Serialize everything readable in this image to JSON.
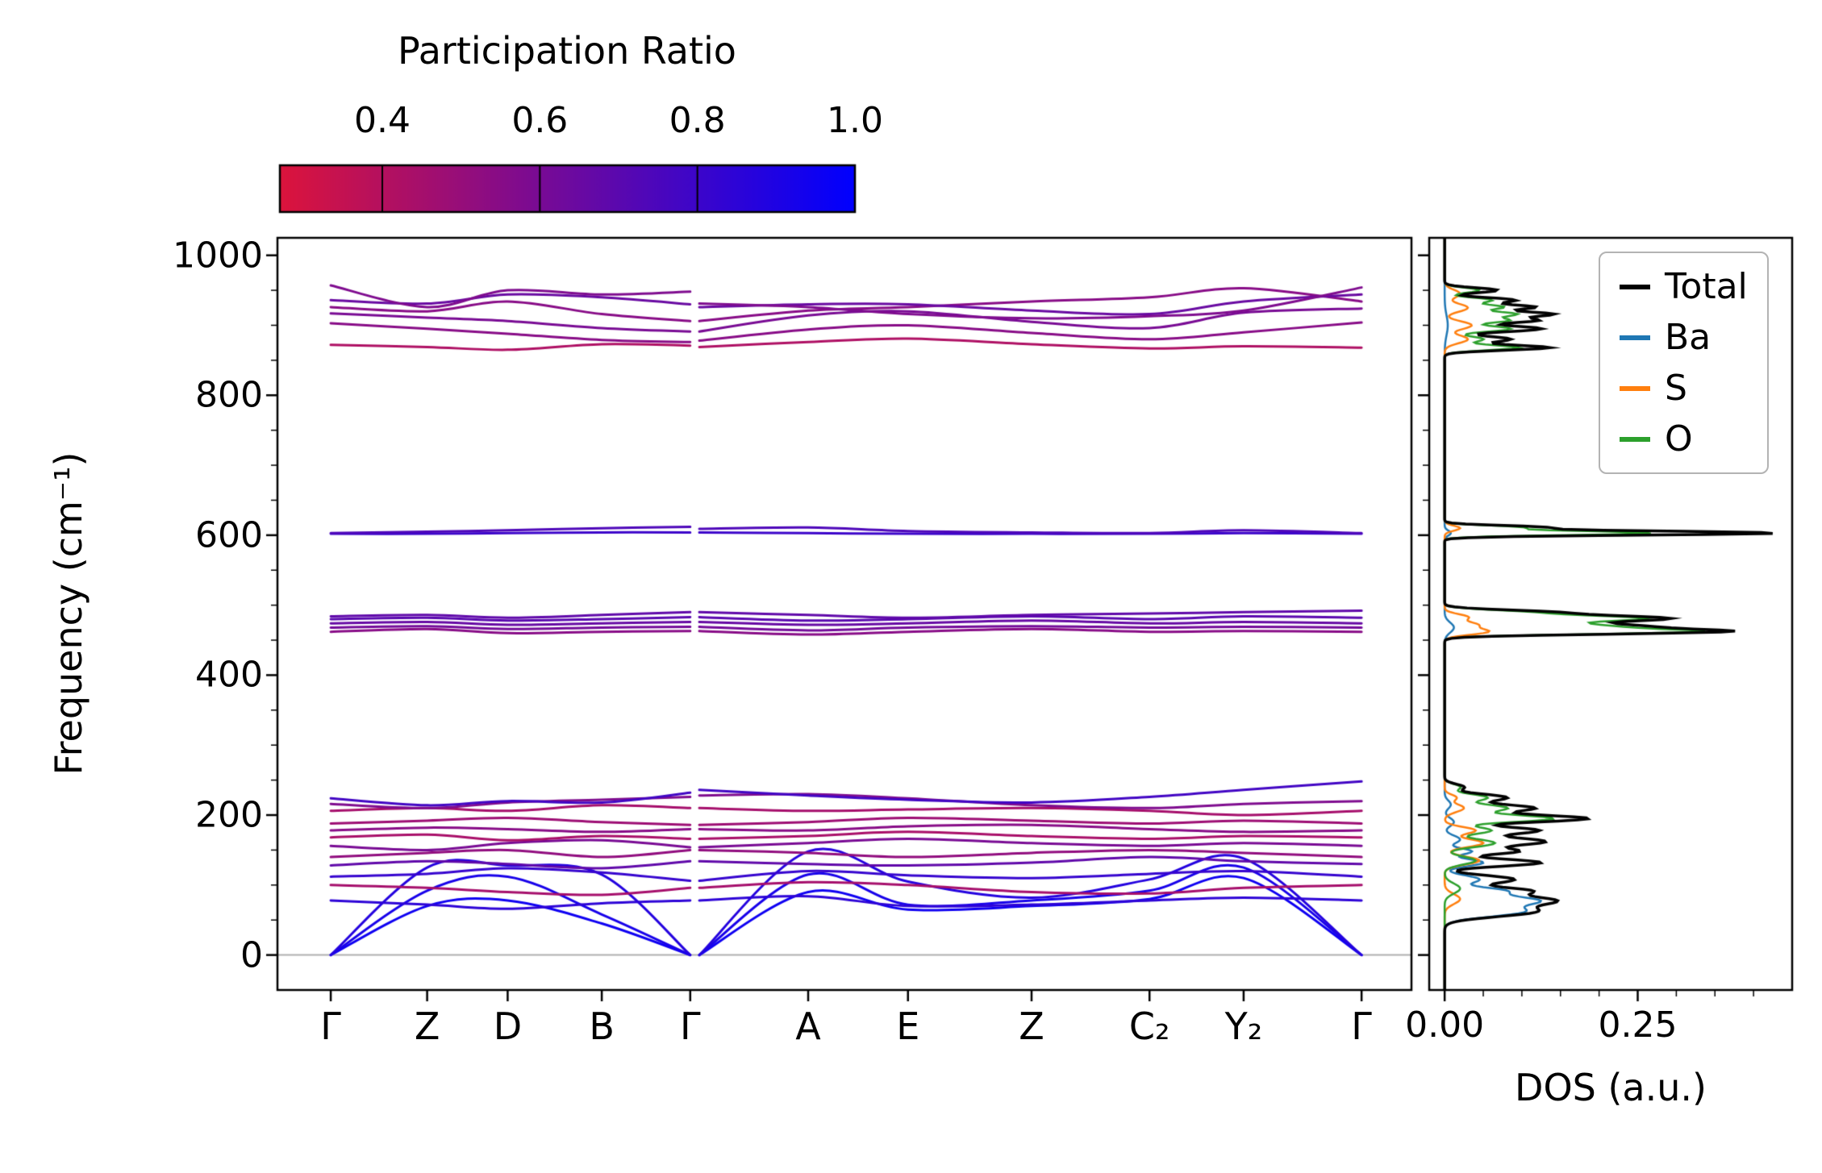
{
  "figure": {
    "colorbar": {
      "title": "Participation Ratio",
      "tick_labels": [
        "0.4",
        "0.6",
        "0.8",
        "1.0"
      ],
      "tick_values": [
        0.4,
        0.6,
        0.8,
        1.0
      ],
      "vmin": 0.27,
      "vmax": 1.0,
      "color_start": "#dc143c",
      "color_end": "#0000ff"
    },
    "band_panel": {
      "ylabel": "Frequency (cm⁻¹)",
      "ytick_labels": [
        "1000",
        "800",
        "600",
        "400",
        "200",
        "0"
      ],
      "ytick_values": [
        1000,
        800,
        600,
        400,
        200,
        0
      ],
      "xtick_labels": [
        "Γ",
        "Z",
        "D",
        "B",
        "Γ",
        "A",
        "E",
        "Z",
        "C₂",
        "Y₂",
        "Γ"
      ]
    },
    "dos_panel": {
      "xlabel": "DOS (a.u.)",
      "xtick_labels": [
        "0.00",
        "0.25"
      ],
      "xtick_values": [
        0.0,
        0.25
      ],
      "legend": [
        {
          "label": "Total",
          "color": "#000000"
        },
        {
          "label": "Ba",
          "color": "#1f77b4"
        },
        {
          "label": "S",
          "color": "#ff7f0e"
        },
        {
          "label": "O",
          "color": "#2ca02c"
        }
      ]
    }
  },
  "chart_data": [
    {
      "type": "line",
      "title": "Phonon band structure colored by participation ratio",
      "xlabel": "",
      "ylabel": "Frequency (cm⁻¹)",
      "ylim": [
        -50,
        1025
      ],
      "yticks": [
        0,
        200,
        400,
        600,
        800,
        1000
      ],
      "x_tick_labels": [
        "Γ",
        "Z",
        "D",
        "B",
        "Γ",
        "A",
        "E",
        "Z",
        "C₂",
        "Y₂",
        "Γ"
      ],
      "x_tick_positions": [
        0.047,
        0.132,
        0.203,
        0.286,
        0.364,
        0.468,
        0.556,
        0.665,
        0.769,
        0.852,
        0.956
      ],
      "colormap": {
        "vmin": 0.27,
        "vmax": 1.0,
        "from": "#dc143c",
        "to": "#0000ff"
      },
      "segment_break_offset": 0.008,
      "zero_line": 0,
      "bands": [
        {
          "pr": 0.95,
          "f1": [
            0,
            70,
            78,
            45,
            0
          ],
          "f2": [
            0,
            90,
            65,
            70,
            80,
            110,
            0
          ]
        },
        {
          "pr": 0.92,
          "f1": [
            0,
            92,
            112,
            58,
            0
          ],
          "f2": [
            0,
            115,
            72,
            78,
            92,
            125,
            0
          ]
        },
        {
          "pr": 0.88,
          "f1": [
            0,
            125,
            128,
            115,
            0
          ],
          "f2": [
            0,
            148,
            105,
            82,
            108,
            138,
            0
          ]
        },
        {
          "pr": 0.85,
          "f1": [
            78,
            72,
            66,
            74,
            78
          ],
          "f2": [
            78,
            84,
            70,
            72,
            78,
            82,
            78
          ]
        },
        {
          "pr": 0.45,
          "f1": [
            100,
            96,
            90,
            86,
            96
          ],
          "f2": [
            96,
            104,
            100,
            90,
            88,
            96,
            100
          ]
        },
        {
          "pr": 0.82,
          "f1": [
            112,
            116,
            124,
            118,
            106
          ],
          "f2": [
            106,
            120,
            114,
            110,
            116,
            120,
            112
          ]
        },
        {
          "pr": 0.68,
          "f1": [
            128,
            134,
            130,
            124,
            134
          ],
          "f2": [
            134,
            130,
            128,
            132,
            140,
            134,
            130
          ]
        },
        {
          "pr": 0.52,
          "f1": [
            140,
            146,
            150,
            140,
            150
          ],
          "f2": [
            150,
            146,
            140,
            146,
            150,
            146,
            140
          ]
        },
        {
          "pr": 0.6,
          "f1": [
            156,
            150,
            160,
            164,
            154
          ],
          "f2": [
            154,
            160,
            166,
            160,
            156,
            160,
            156
          ]
        },
        {
          "pr": 0.44,
          "f1": [
            168,
            172,
            164,
            170,
            166
          ],
          "f2": [
            166,
            170,
            176,
            170,
            166,
            170,
            168
          ]
        },
        {
          "pr": 0.55,
          "f1": [
            178,
            182,
            180,
            176,
            180
          ],
          "f2": [
            180,
            178,
            184,
            186,
            180,
            176,
            178
          ]
        },
        {
          "pr": 0.48,
          "f1": [
            188,
            192,
            196,
            190,
            186
          ],
          "f2": [
            186,
            190,
            196,
            192,
            188,
            192,
            188
          ]
        },
        {
          "pr": 0.45,
          "f1": [
            206,
            210,
            206,
            214,
            210
          ],
          "f2": [
            210,
            206,
            208,
            210,
            206,
            200,
            206
          ]
        },
        {
          "pr": 0.58,
          "f1": [
            216,
            210,
            218,
            222,
            226
          ],
          "f2": [
            228,
            230,
            224,
            214,
            210,
            216,
            220
          ]
        },
        {
          "pr": 0.78,
          "f1": [
            224,
            214,
            220,
            218,
            232
          ],
          "f2": [
            236,
            228,
            222,
            218,
            226,
            236,
            248
          ]
        },
        {
          "pr": 0.55,
          "f1": [
            462,
            466,
            460,
            462,
            463
          ],
          "f2": [
            463,
            458,
            462,
            466,
            462,
            463,
            462
          ]
        },
        {
          "pr": 0.62,
          "f1": [
            468,
            470,
            466,
            468,
            469
          ],
          "f2": [
            469,
            464,
            468,
            470,
            468,
            469,
            468
          ]
        },
        {
          "pr": 0.66,
          "f1": [
            474,
            476,
            472,
            474,
            476
          ],
          "f2": [
            476,
            472,
            474,
            478,
            474,
            476,
            474
          ]
        },
        {
          "pr": 0.7,
          "f1": [
            480,
            482,
            478,
            480,
            483
          ],
          "f2": [
            483,
            478,
            480,
            484,
            480,
            484,
            482
          ]
        },
        {
          "pr": 0.68,
          "f1": [
            484,
            486,
            482,
            486,
            490
          ],
          "f2": [
            490,
            486,
            482,
            486,
            488,
            490,
            492
          ]
        },
        {
          "pr": 0.8,
          "f1": [
            602,
            602,
            603,
            604,
            604
          ],
          "f2": [
            604,
            603,
            602,
            602,
            602,
            603,
            602
          ]
        },
        {
          "pr": 0.74,
          "f1": [
            603,
            605,
            607,
            610,
            612
          ],
          "f2": [
            609,
            611,
            606,
            604,
            603,
            607,
            603
          ]
        },
        {
          "pr": 0.42,
          "f1": [
            872,
            869,
            865,
            873,
            871
          ],
          "f2": [
            869,
            876,
            881,
            873,
            867,
            870,
            868
          ]
        },
        {
          "pr": 0.55,
          "f1": [
            903,
            895,
            888,
            879,
            876
          ],
          "f2": [
            878,
            894,
            900,
            889,
            880,
            890,
            904
          ]
        },
        {
          "pr": 0.6,
          "f1": [
            917,
            911,
            906,
            896,
            891
          ],
          "f2": [
            891,
            914,
            920,
            905,
            896,
            918,
            924
          ]
        },
        {
          "pr": 0.55,
          "f1": [
            926,
            920,
            934,
            916,
            906
          ],
          "f2": [
            906,
            921,
            926,
            934,
            940,
            953,
            934
          ]
        },
        {
          "pr": 0.65,
          "f1": [
            936,
            931,
            944,
            940,
            930
          ],
          "f2": [
            926,
            930,
            930,
            921,
            916,
            934,
            944
          ]
        },
        {
          "pr": 0.58,
          "f1": [
            957,
            926,
            950,
            944,
            948
          ],
          "f2": [
            931,
            926,
            916,
            910,
            913,
            921,
            954
          ]
        }
      ]
    },
    {
      "type": "line",
      "title": "Phonon density of states",
      "xlabel": "DOS (a.u.)",
      "ylabel": "Frequency (cm⁻¹)",
      "orientation": "horizontal",
      "xlim": [
        -0.02,
        0.45
      ],
      "xticks": [
        0.0,
        0.25
      ],
      "ylim": [
        -50,
        1025
      ],
      "legend_position": "upper right",
      "series": [
        {
          "name": "Total",
          "color": "#000000",
          "peaks": [
            [
              62,
              0.115,
              10
            ],
            [
              78,
              0.135,
              9
            ],
            [
              92,
              0.1,
              7
            ],
            [
              108,
              0.09,
              8
            ],
            [
              132,
              0.125,
              7
            ],
            [
              148,
              0.09,
              6
            ],
            [
              162,
              0.13,
              8
            ],
            [
              178,
              0.12,
              7
            ],
            [
              195,
              0.185,
              7
            ],
            [
              210,
              0.115,
              7
            ],
            [
              225,
              0.08,
              7
            ],
            [
              240,
              0.025,
              6
            ],
            [
              462,
              0.33,
              5
            ],
            [
              470,
              0.23,
              6
            ],
            [
              481,
              0.28,
              6
            ],
            [
              490,
              0.12,
              5
            ],
            [
              603,
              0.43,
              4
            ],
            [
              611,
              0.13,
              4
            ],
            [
              868,
              0.135,
              5
            ],
            [
              880,
              0.085,
              6
            ],
            [
              895,
              0.125,
              6
            ],
            [
              907,
              0.115,
              5
            ],
            [
              916,
              0.135,
              5
            ],
            [
              926,
              0.115,
              5
            ],
            [
              936,
              0.09,
              5
            ],
            [
              950,
              0.068,
              5
            ]
          ]
        },
        {
          "name": "Ba",
          "color": "#1f77b4",
          "peaks": [
            [
              62,
              0.1,
              10
            ],
            [
              78,
              0.115,
              9
            ],
            [
              92,
              0.07,
              7
            ],
            [
              108,
              0.045,
              8
            ],
            [
              132,
              0.05,
              7
            ],
            [
              148,
              0.035,
              6
            ],
            [
              165,
              0.02,
              8
            ],
            [
              190,
              0.012,
              8
            ],
            [
              215,
              0.008,
              8
            ],
            [
              468,
              0.012,
              10
            ],
            [
              603,
              0.008,
              5
            ],
            [
              900,
              0.004,
              20
            ]
          ]
        },
        {
          "name": "S",
          "color": "#ff7f0e",
          "peaks": [
            [
              80,
              0.02,
              10
            ],
            [
              135,
              0.045,
              8
            ],
            [
              160,
              0.05,
              8
            ],
            [
              178,
              0.04,
              7
            ],
            [
              210,
              0.025,
              8
            ],
            [
              225,
              0.015,
              6
            ],
            [
              462,
              0.055,
              6
            ],
            [
              472,
              0.04,
              6
            ],
            [
              483,
              0.03,
              6
            ],
            [
              610,
              0.02,
              5
            ],
            [
              880,
              0.03,
              8
            ],
            [
              900,
              0.035,
              8
            ],
            [
              925,
              0.03,
              8
            ],
            [
              945,
              0.02,
              8
            ]
          ]
        },
        {
          "name": "O",
          "color": "#2ca02c",
          "peaks": [
            [
              95,
              0.02,
              10
            ],
            [
              135,
              0.04,
              8
            ],
            [
              160,
              0.065,
              8
            ],
            [
              178,
              0.06,
              7
            ],
            [
              195,
              0.14,
              7
            ],
            [
              210,
              0.08,
              7
            ],
            [
              225,
              0.055,
              7
            ],
            [
              240,
              0.02,
              6
            ],
            [
              462,
              0.3,
              5
            ],
            [
              470,
              0.19,
              6
            ],
            [
              481,
              0.25,
              6
            ],
            [
              490,
              0.09,
              5
            ],
            [
              603,
              0.27,
              4
            ],
            [
              611,
              0.1,
              4
            ],
            [
              868,
              0.095,
              5
            ],
            [
              880,
              0.05,
              6
            ],
            [
              895,
              0.085,
              6
            ],
            [
              907,
              0.08,
              5
            ],
            [
              916,
              0.09,
              5
            ],
            [
              926,
              0.075,
              5
            ],
            [
              936,
              0.06,
              5
            ],
            [
              950,
              0.045,
              5
            ]
          ]
        }
      ]
    }
  ]
}
